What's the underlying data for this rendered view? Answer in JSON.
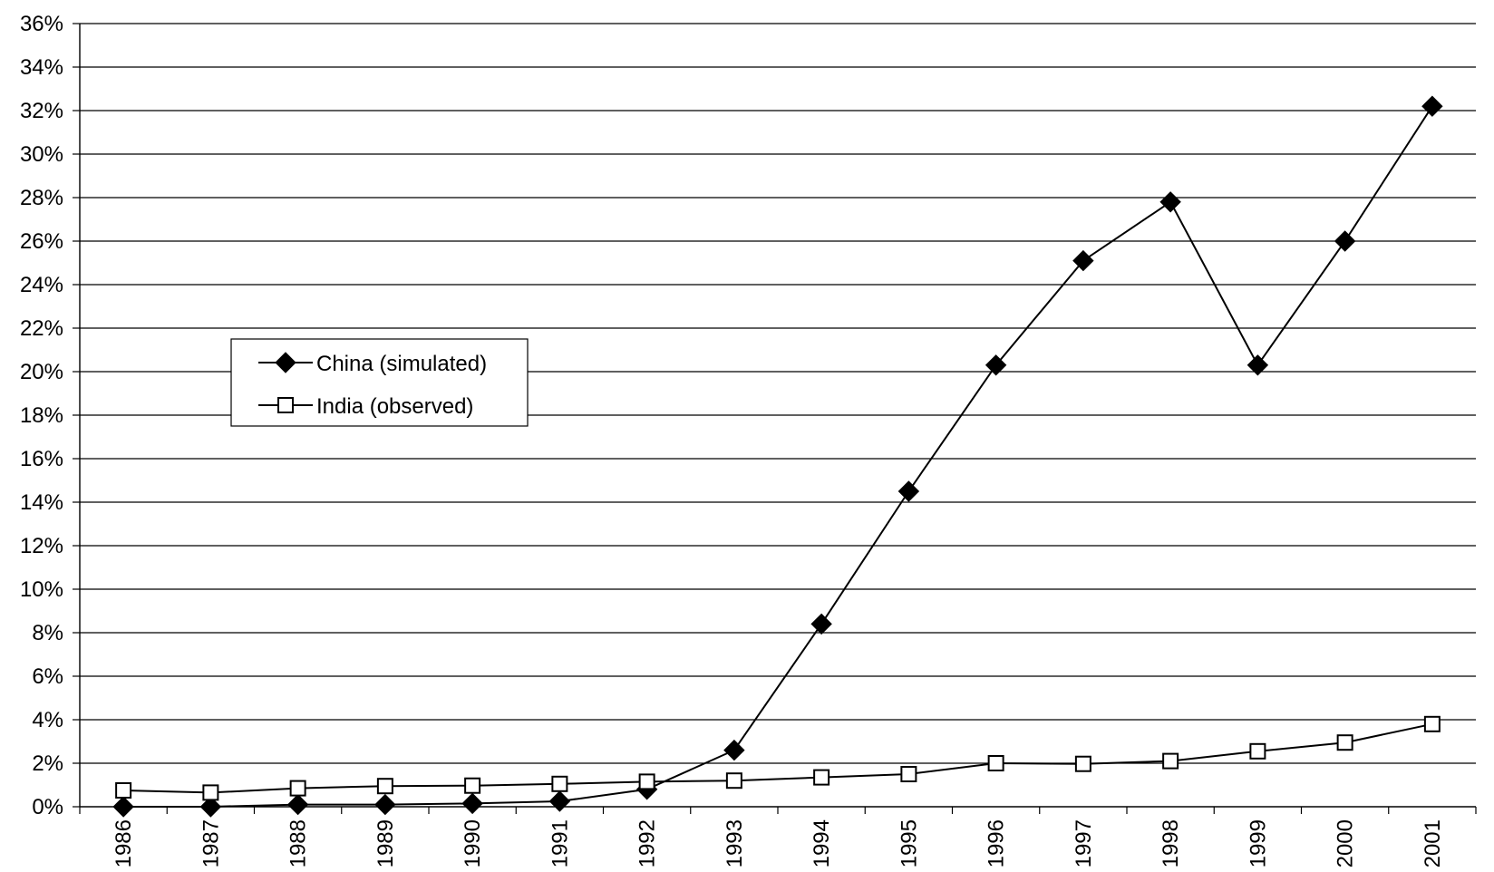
{
  "chart_data": {
    "type": "line",
    "title": "",
    "xlabel": "",
    "ylabel": "",
    "x": [
      "1986",
      "1987",
      "1988",
      "1989",
      "1990",
      "1991",
      "1992",
      "1993",
      "1994",
      "1995",
      "1996",
      "1997",
      "1998",
      "1999",
      "2000",
      "2001"
    ],
    "ylim": [
      0,
      36
    ],
    "y_unit": "%",
    "y_ticks": [
      "0%",
      "2%",
      "4%",
      "6%",
      "8%",
      "10%",
      "12%",
      "14%",
      "16%",
      "18%",
      "20%",
      "22%",
      "24%",
      "26%",
      "28%",
      "30%",
      "32%",
      "34%",
      "36%"
    ],
    "grid": "horizontal",
    "legend_position": "upper-left",
    "series": [
      {
        "name": "China (simulated)",
        "marker": "filled-diamond",
        "color": "#000000",
        "values": [
          0.0,
          0.0,
          0.1,
          0.1,
          0.15,
          0.25,
          0.8,
          2.6,
          8.4,
          14.5,
          20.3,
          25.1,
          27.8,
          20.3,
          26.0,
          32.2
        ]
      },
      {
        "name": "India (observed)",
        "marker": "hollow-square",
        "color": "#000000",
        "values": [
          0.75,
          0.65,
          0.85,
          0.95,
          0.97,
          1.05,
          1.15,
          1.2,
          1.35,
          1.5,
          2.0,
          1.97,
          2.1,
          2.55,
          2.95,
          3.8
        ]
      }
    ]
  }
}
